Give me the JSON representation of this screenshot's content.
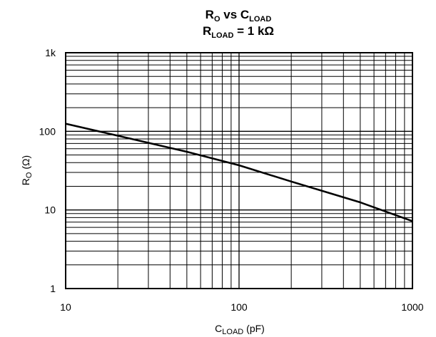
{
  "chart_data": {
    "type": "line",
    "title": {
      "line1": {
        "main": "R",
        "sub": "O",
        "mid": " vs C",
        "sub2": "LOAD"
      },
      "line2": {
        "main": "R",
        "sub": "LOAD",
        "rest": " = 1 kΩ"
      }
    },
    "xlabel": {
      "main": "C",
      "sub": "LOAD",
      "rest": " (pF)"
    },
    "ylabel": {
      "main": "R",
      "sub": "O",
      "rest": " (Ω)"
    },
    "x_scale": "log",
    "y_scale": "log",
    "xlim": [
      10,
      1000
    ],
    "ylim": [
      1,
      1000
    ],
    "x_ticks": [
      {
        "value": 10,
        "label": "10"
      },
      {
        "value": 100,
        "label": "100"
      },
      {
        "value": 1000,
        "label": "1000"
      }
    ],
    "y_ticks": [
      {
        "value": 1,
        "label": "1"
      },
      {
        "value": 10,
        "label": "10"
      },
      {
        "value": 100,
        "label": "100"
      },
      {
        "value": 1000,
        "label": "1k"
      }
    ],
    "grid": true,
    "series": [
      {
        "color": "#000000",
        "x": [
          10,
          20,
          50,
          100,
          200,
          500,
          1000
        ],
        "y": [
          125,
          88,
          55,
          37,
          23,
          12.5,
          7.2
        ]
      }
    ]
  }
}
